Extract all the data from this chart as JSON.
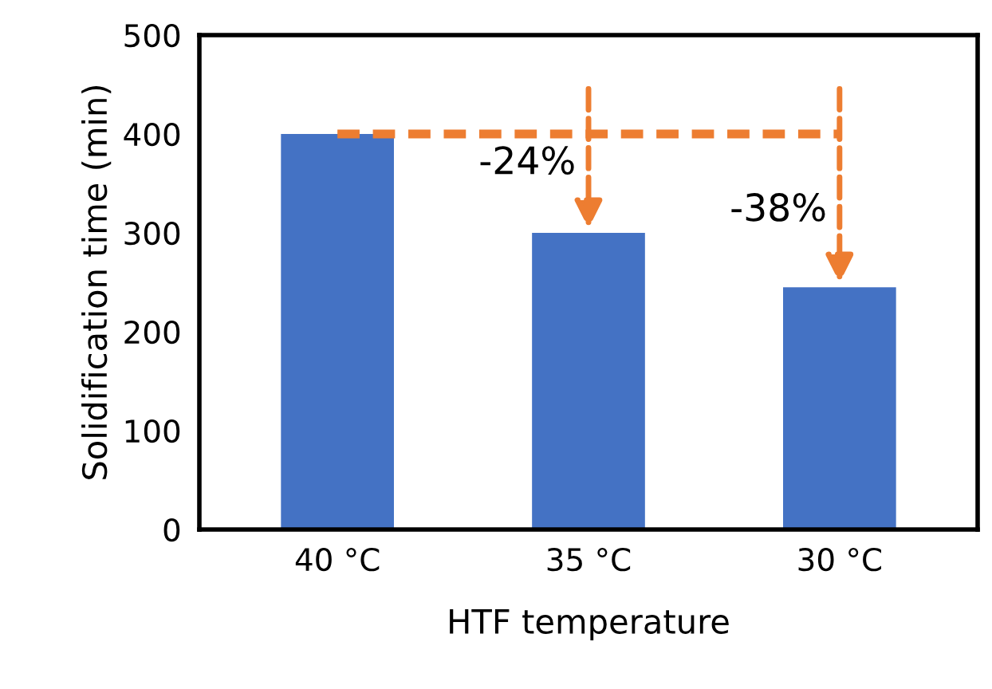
{
  "chart_data": {
    "type": "bar",
    "xlabel": "HTF temperature",
    "ylabel": "Solidification time (min)",
    "categories": [
      "40 °C",
      "35 °C",
      "30 °C"
    ],
    "values": [
      400,
      300,
      245
    ],
    "color": "#4472c4",
    "ylim": [
      0,
      500
    ],
    "yticks": [
      0,
      100,
      200,
      300,
      400,
      500
    ],
    "grid": false,
    "ref_lines": [
      {
        "axis": "y",
        "value": 400,
        "color": "#ed7d31",
        "line_style": "dashed"
      }
    ],
    "annotations": [
      "-24%",
      "-38%"
    ]
  }
}
